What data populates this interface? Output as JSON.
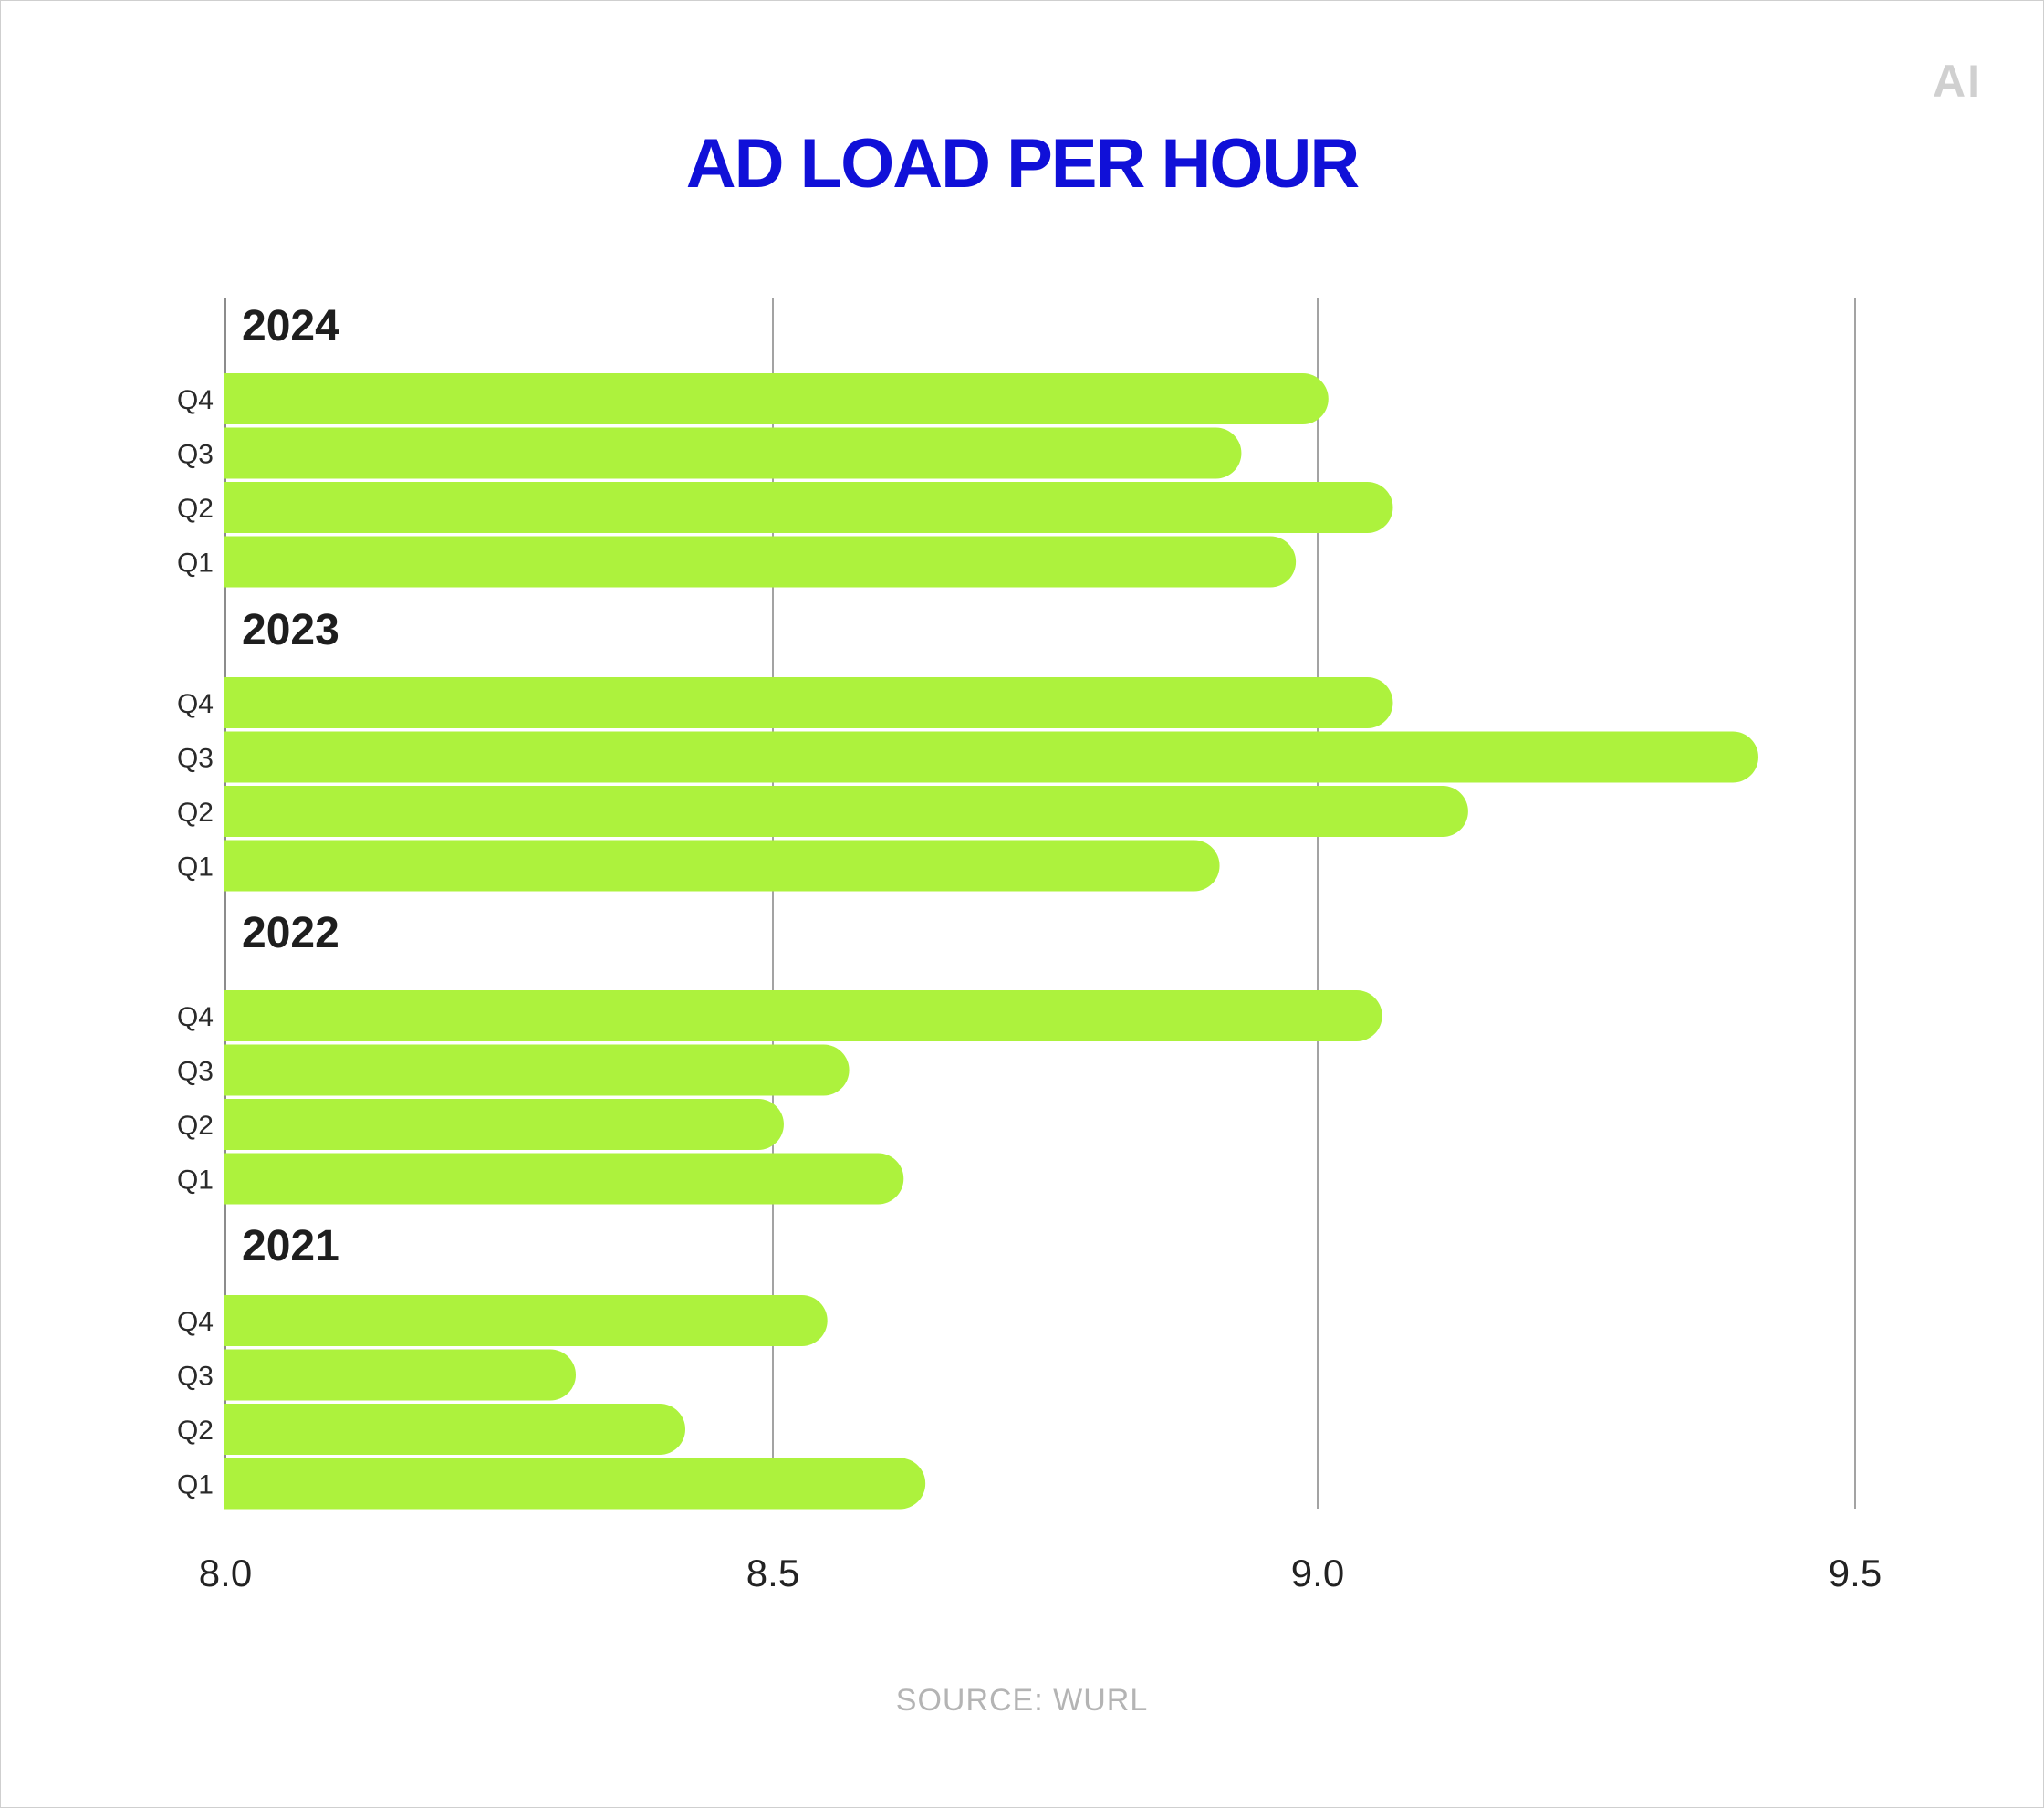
{
  "logo": "AI",
  "source": "SOURCE:  WURL",
  "colors": {
    "bar": "#adf23d",
    "title": "#1010d8",
    "grid": "#8c8c8c",
    "source": "#b4b4b4"
  },
  "chart_data": {
    "type": "bar",
    "orientation": "horizontal",
    "title": "AD LOAD PER HOUR",
    "xlabel": "",
    "ylabel": "",
    "xlim": [
      8.0,
      9.5
    ],
    "x_ticks": [
      "8.0",
      "8.5",
      "9.0",
      "9.5"
    ],
    "grid": true,
    "groups": [
      {
        "label": "2024",
        "categories": [
          "Q4",
          "Q3",
          "Q2",
          "Q1"
        ],
        "values": [
          9.01,
          8.93,
          9.07,
          8.98
        ]
      },
      {
        "label": "2023",
        "categories": [
          "Q4",
          "Q3",
          "Q2",
          "Q1"
        ],
        "values": [
          9.07,
          9.41,
          9.14,
          8.91
        ]
      },
      {
        "label": "2022",
        "categories": [
          "Q4",
          "Q3",
          "Q2",
          "Q1"
        ],
        "values": [
          9.06,
          8.57,
          8.51,
          8.62
        ]
      },
      {
        "label": "2021",
        "categories": [
          "Q4",
          "Q3",
          "Q2",
          "Q1"
        ],
        "values": [
          8.55,
          8.32,
          8.42,
          8.64
        ]
      }
    ]
  }
}
